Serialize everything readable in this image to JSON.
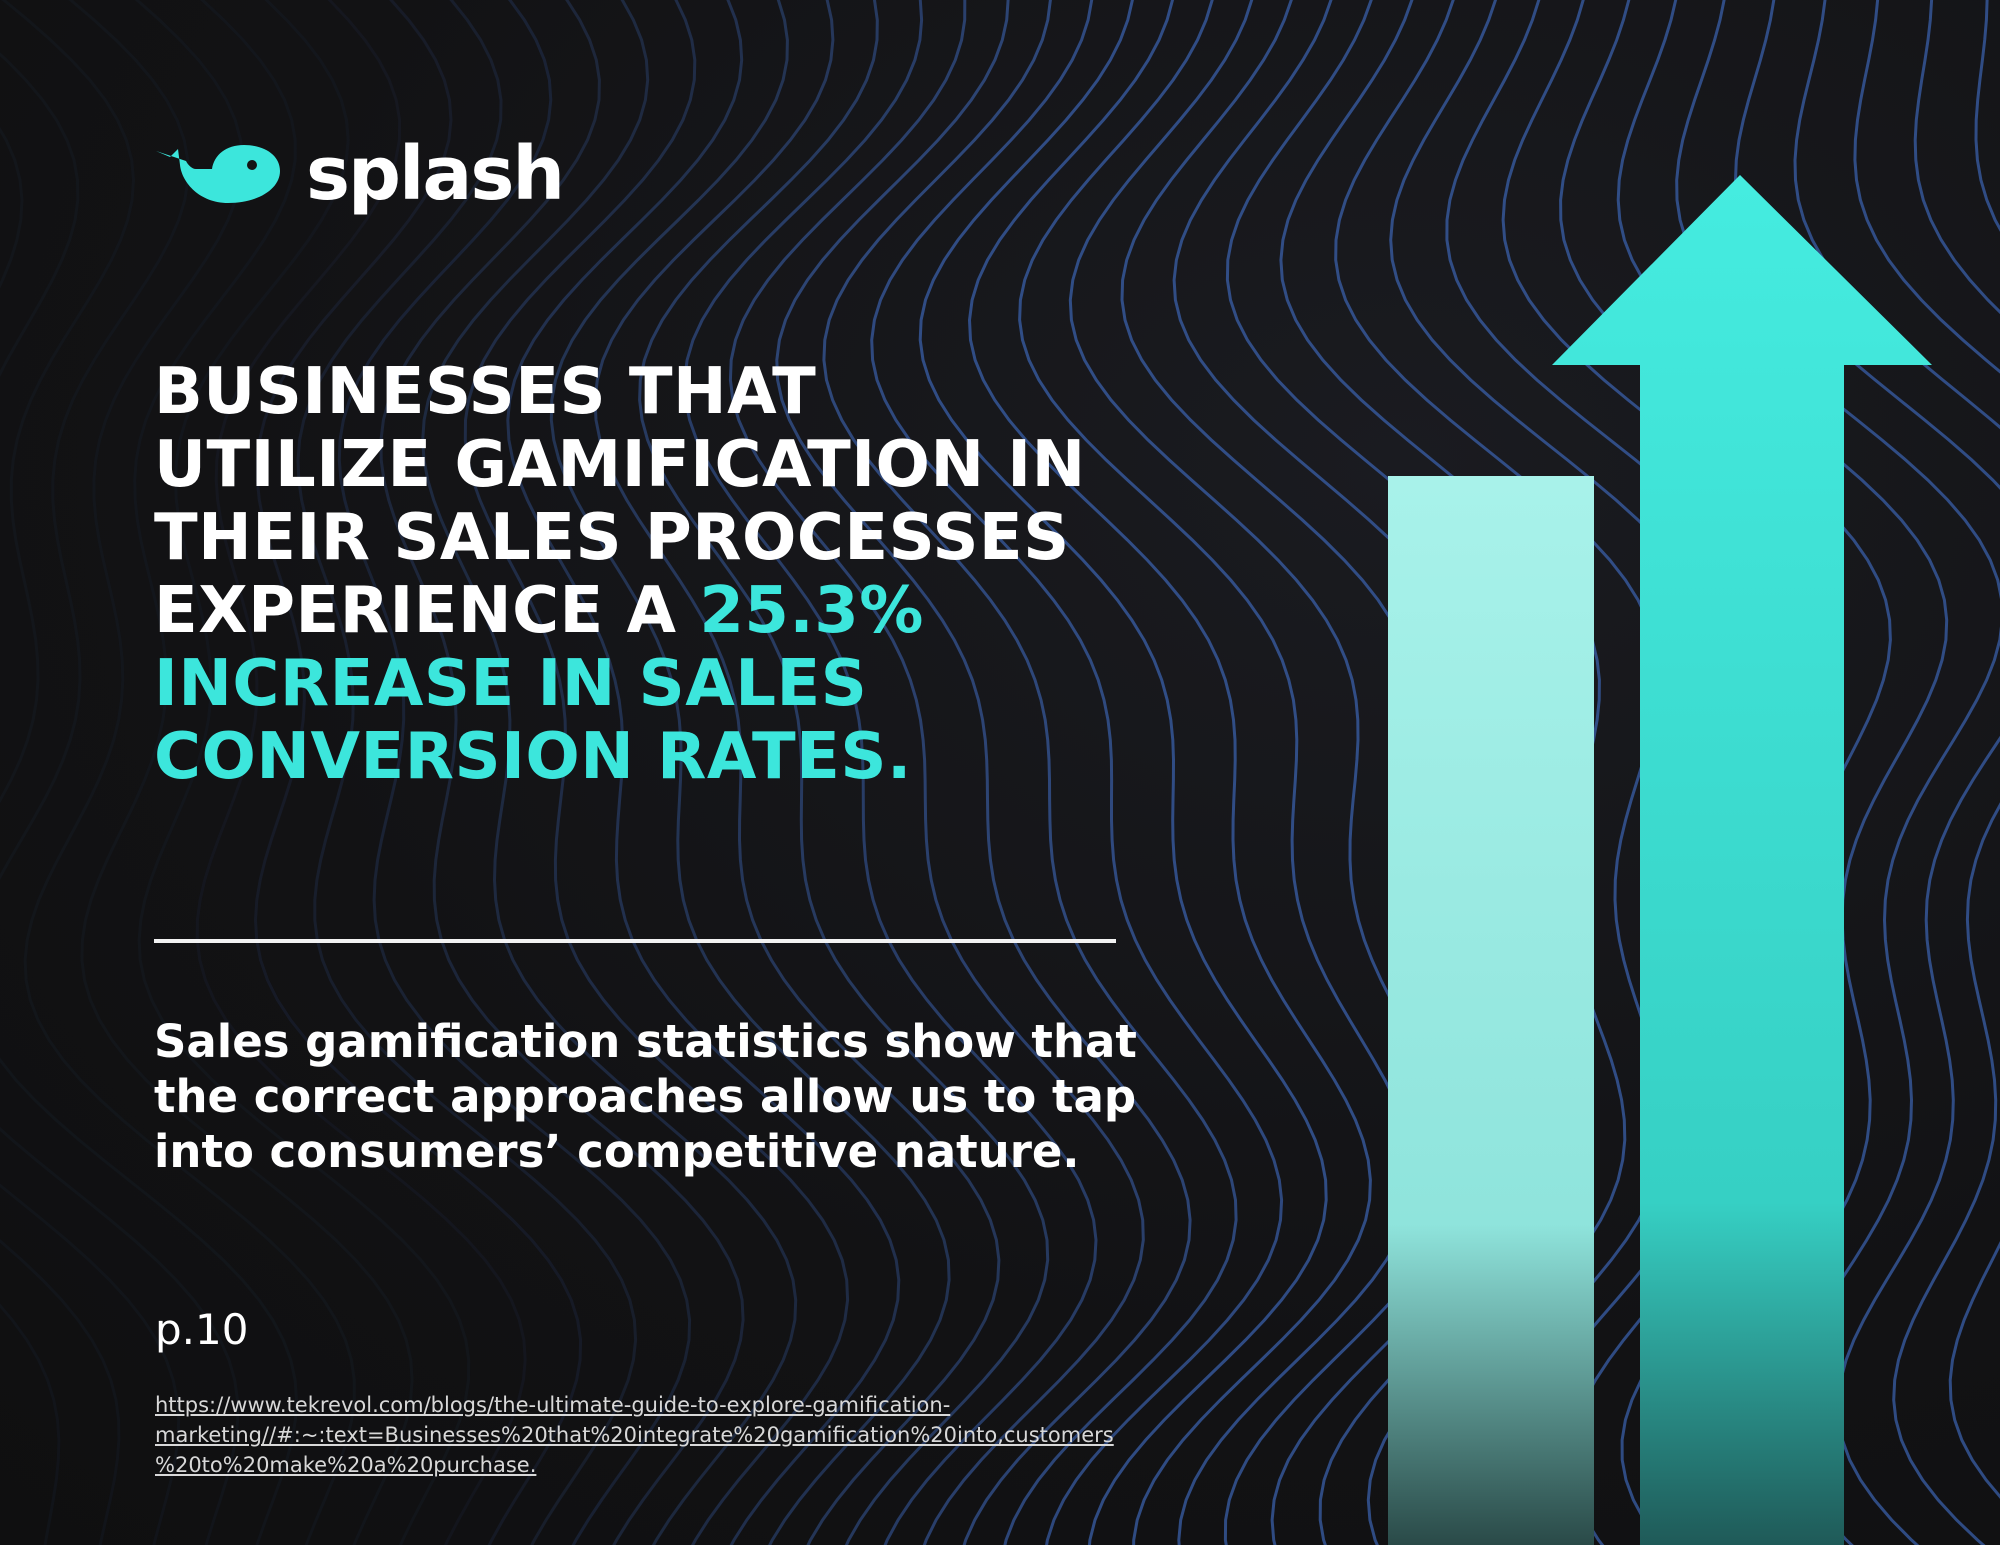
{
  "brand": {
    "name": "splash",
    "accent_color": "#3ce6dc",
    "logo_icon": "whale-icon"
  },
  "headline": {
    "lines": [
      {
        "text": "BUSINESSES THAT",
        "accent": ""
      },
      {
        "text": "UTILIZE GAMIFICATION IN",
        "accent": ""
      },
      {
        "text": "THEIR SALES PROCESSES",
        "accent": ""
      },
      {
        "text": "EXPERIENCE A ",
        "accent": "25.3%"
      },
      {
        "text": "",
        "accent": "INCREASE IN SALES"
      },
      {
        "text": "",
        "accent": "CONVERSION RATES."
      }
    ]
  },
  "body": {
    "lines": [
      "Sales gamification statistics show that",
      "the correct approaches allow us to tap",
      "into consumers’ competitive nature."
    ]
  },
  "page_number": "p.10",
  "source": {
    "lines": [
      "https://www.tekrevol.com/blogs/the-ultimate-guide-to-explore-gamification-",
      "marketing//#:~:text=Businesses%20that%20integrate%20gamification%20into,customers",
      "%20to%20make%20a%20purchase."
    ]
  },
  "graphic": {
    "bar_color_light": "#a8f2ea",
    "bar_color_main": "#3ce6dc",
    "background_line_color": "#3a5fa8"
  }
}
